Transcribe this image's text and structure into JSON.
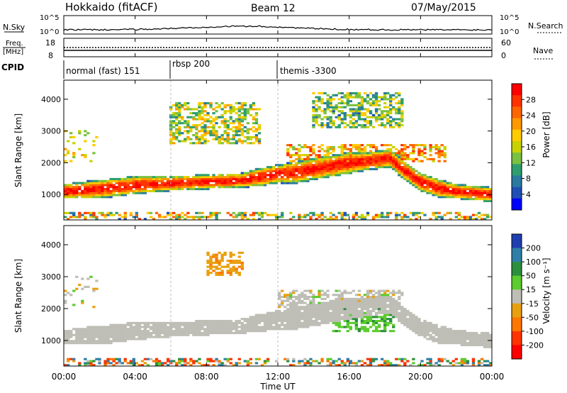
{
  "header": {
    "title": "Hokkaido (fitACF)",
    "beam": "Beam 12",
    "date": "07/May/2015"
  },
  "top_panels": {
    "nsky_label": "N.Sky",
    "nsky_ticks": [
      "10^5",
      "10^0"
    ],
    "nsearch_label": "N.Search",
    "freq_label_1": "Freq.",
    "freq_label_2": "[MHz]",
    "freq_ticks": [
      "18",
      "8"
    ],
    "nave_label": "Nave",
    "nave_ticks": [
      "60",
      "0"
    ],
    "cpid_label": "CPID",
    "cpid_segments": [
      {
        "label": "normal (fast) 151",
        "start_h": 0
      },
      {
        "label": "rbsp 200",
        "start_h": 6
      },
      {
        "label": "themis -3300",
        "start_h": 12
      }
    ]
  },
  "power_colorbar": {
    "title": "Power [dB]",
    "ticks": [
      "28",
      "24",
      "20",
      "16",
      "12",
      "8",
      "4"
    ],
    "colors": [
      "#ff0000",
      "#ff3300",
      "#ff6600",
      "#ff9900",
      "#ffcc00",
      "#c8d200",
      "#7ac142",
      "#2f9e6e",
      "#2a7aa0",
      "#1f4fb4",
      "#0000ff"
    ]
  },
  "velocity_colorbar": {
    "title": "Velocity [m s⁻¹]",
    "ticks": [
      "200",
      "100",
      "50",
      "15",
      "-15",
      "-50",
      "-100",
      "-200"
    ],
    "colors": [
      "#1f3fb0",
      "#2e7fa8",
      "#2c8f3e",
      "#5ccc2e",
      "#bebeb6",
      "#e8a010",
      "#ff7700",
      "#ff3300",
      "#ff0000"
    ]
  },
  "chart_data": {
    "type": "heatmap",
    "xlabel": "Time UT",
    "x_ticks": [
      "00:00",
      "04:00",
      "08:00",
      "12:00",
      "16:00",
      "20:00",
      "00:00"
    ],
    "xlim_hours": [
      0,
      24
    ],
    "ylabel": "Slant Range [km]",
    "y_ticks": [
      1000,
      2000,
      3000,
      4000
    ],
    "ylim_km": [
      200,
      4600
    ],
    "panels": [
      {
        "quantity": "Power [dB]",
        "range": [
          0,
          30
        ],
        "main_band": {
          "time_h": [
            0,
            1.5,
            2.5,
            4,
            6,
            8,
            10,
            11,
            12,
            13,
            14,
            15,
            16,
            17,
            18.3,
            19,
            20,
            21,
            22,
            23,
            24
          ],
          "center_km": [
            1100,
            1150,
            1200,
            1300,
            1350,
            1400,
            1450,
            1550,
            1650,
            1700,
            1800,
            1900,
            2000,
            2050,
            2150,
            1800,
            1400,
            1200,
            1100,
            1050,
            1000
          ],
          "half_width_km": [
            200,
            250,
            250,
            250,
            200,
            200,
            200,
            250,
            250,
            300,
            300,
            300,
            300,
            250,
            250,
            250,
            250,
            250,
            200,
            200,
            200
          ],
          "peak_power_db": 30
        },
        "upper_patches": [
          {
            "t0": 6,
            "t1": 11,
            "r0": 2600,
            "r1": 3900,
            "power_db": 14
          },
          {
            "t0": 12.5,
            "t1": 21.5,
            "r0": 2000,
            "r1": 2600,
            "power_db": 20
          },
          {
            "t0": 14,
            "t1": 19,
            "r0": 3100,
            "r1": 4200,
            "power_db": 12
          }
        ]
      },
      {
        "quantity": "Velocity [m s⁻¹]",
        "range": [
          -200,
          200
        ],
        "main_band_velocity": 0,
        "upper_patches": [
          {
            "t0": 8,
            "t1": 10,
            "r0": 3000,
            "r1": 3800,
            "velocity": -40
          },
          {
            "t0": 12,
            "t1": 19,
            "r0": 2000,
            "r1": 2600,
            "velocity": 0
          },
          {
            "t0": 15,
            "t1": 18.5,
            "r0": 1300,
            "r1": 2000,
            "velocity": 40
          }
        ]
      }
    ]
  }
}
